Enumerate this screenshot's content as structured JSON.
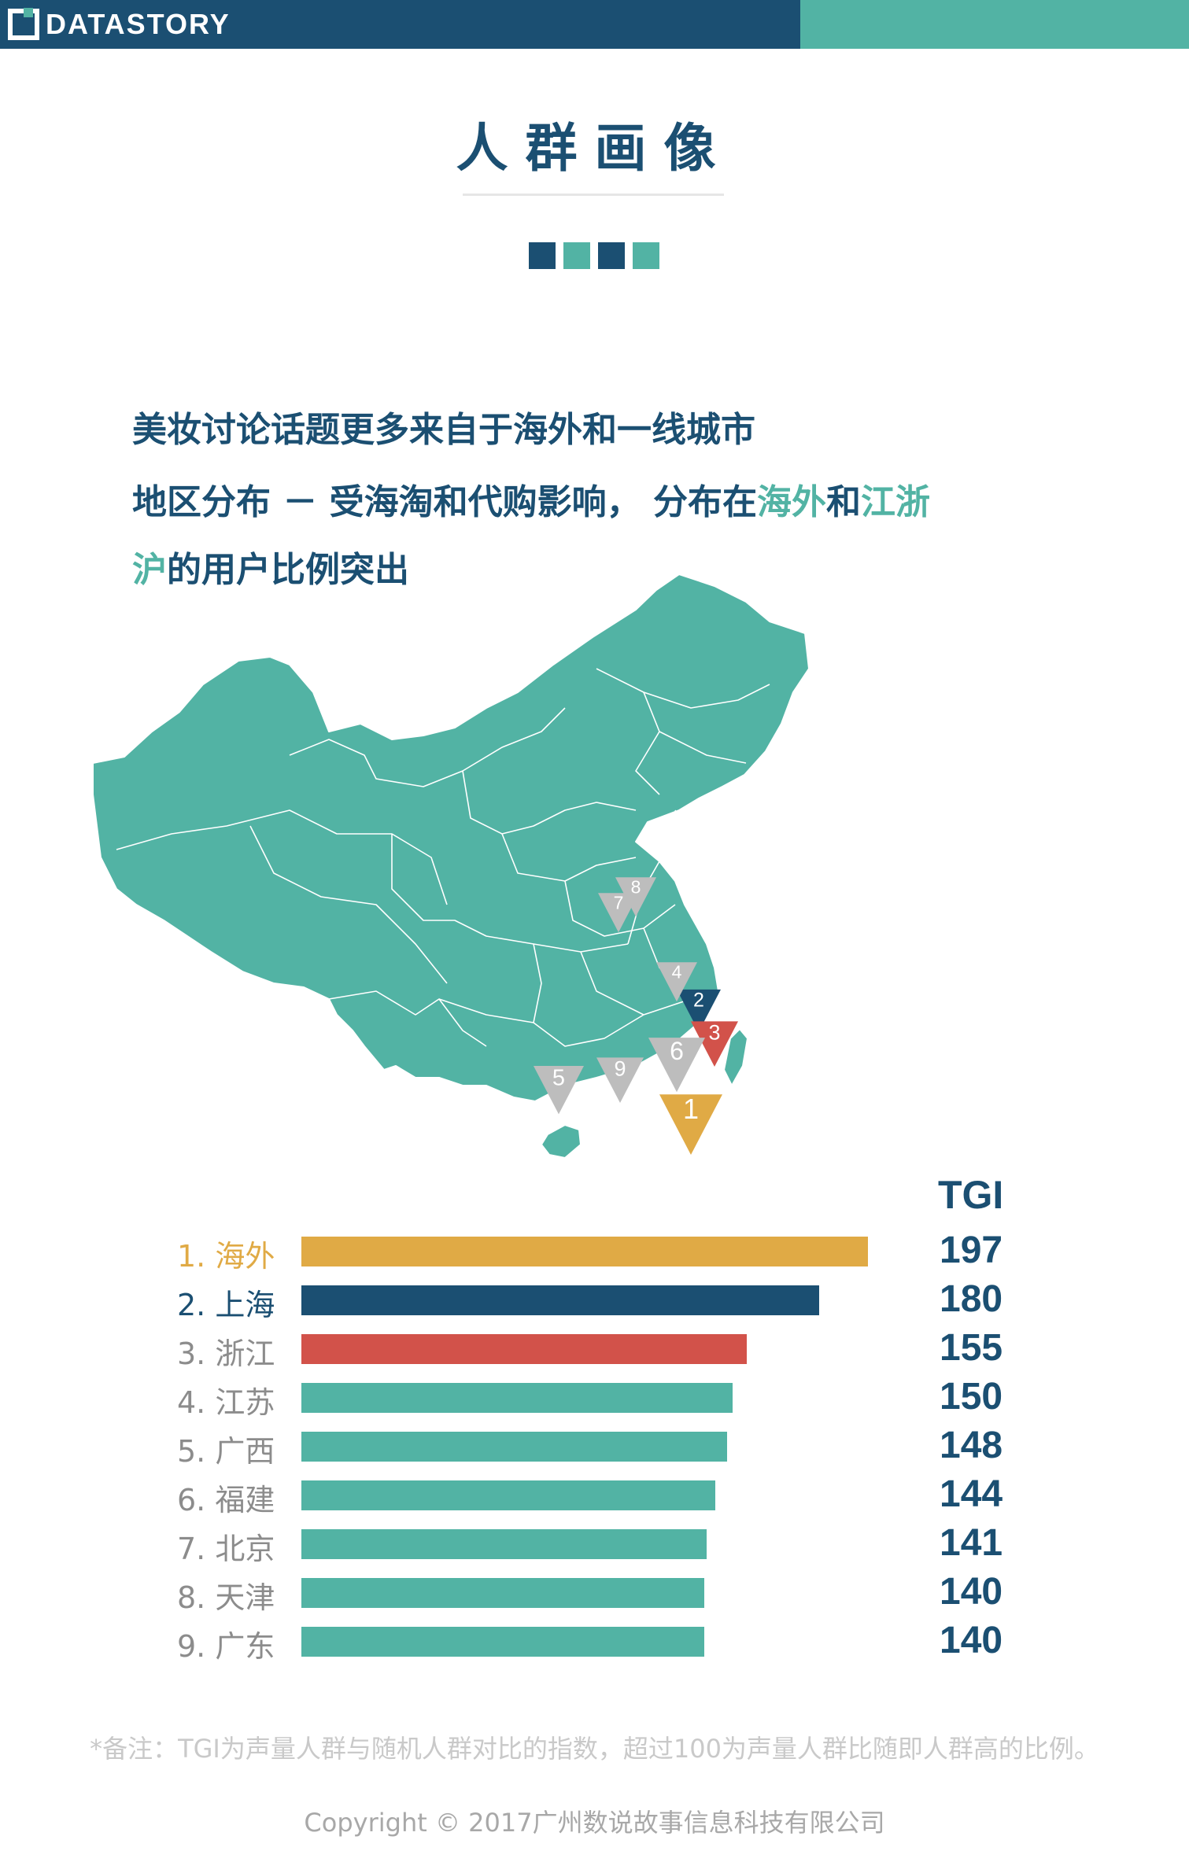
{
  "header": {
    "logo_text": "DATASTORY",
    "navy": "#1b4f72",
    "teal": "#52b3a4"
  },
  "title": "人群画像",
  "decor_squares": [
    "#1b4f72",
    "#52b3a4",
    "#1b4f72",
    "#52b3a4"
  ],
  "headline1": "美妆讨论话题更多来自于海外和一线城市",
  "headline2": {
    "p1": "地区分布 － 受海淘和代购影响， 分布在",
    "hl1": "海外",
    "p2": "和",
    "hl2": "江浙",
    "line2_hl": "沪",
    "line2_rest": "的用户比例突出"
  },
  "map": {
    "fill": "#52b3a4",
    "markers": [
      {
        "label": "1",
        "color": "#e0aa45"
      },
      {
        "label": "2",
        "color": "#1b4f72"
      },
      {
        "label": "3",
        "color": "#d2524a"
      },
      {
        "label": "4",
        "color": "#bdbdbd"
      },
      {
        "label": "5",
        "color": "#bdbdbd"
      },
      {
        "label": "6",
        "color": "#bdbdbd"
      },
      {
        "label": "7",
        "color": "#bdbdbd"
      },
      {
        "label": "8",
        "color": "#bdbdbd"
      },
      {
        "label": "9",
        "color": "#bdbdbd"
      }
    ]
  },
  "chart_data": {
    "type": "bar",
    "orientation": "horizontal",
    "value_header": "TGI",
    "categories": [
      "1. 海外",
      "2. 上海",
      "3. 浙江",
      "4. 江苏",
      "5. 广西",
      "6. 福建",
      "7. 北京",
      "8. 天津",
      "9. 广东"
    ],
    "values": [
      197,
      180,
      155,
      150,
      148,
      144,
      141,
      140,
      140
    ],
    "colors": [
      "#e0aa45",
      "#1b4f72",
      "#d2524a",
      "#52b3a4",
      "#52b3a4",
      "#52b3a4",
      "#52b3a4",
      "#52b3a4",
      "#52b3a4"
    ],
    "label_colors": [
      "#e0aa45",
      "#1b4f72",
      "#8c8c8c",
      "#8c8c8c",
      "#8c8c8c",
      "#8c8c8c",
      "#8c8c8c",
      "#8c8c8c",
      "#8c8c8c"
    ],
    "xlim": [
      0,
      197
    ]
  },
  "footer": {
    "note": "*备注：TGI为声量人群与随机人群对比的指数，超过100为声量人群比随即人群高的比例。",
    "copyright": "Copyright © 2017广州数说故事信息科技有限公司"
  }
}
